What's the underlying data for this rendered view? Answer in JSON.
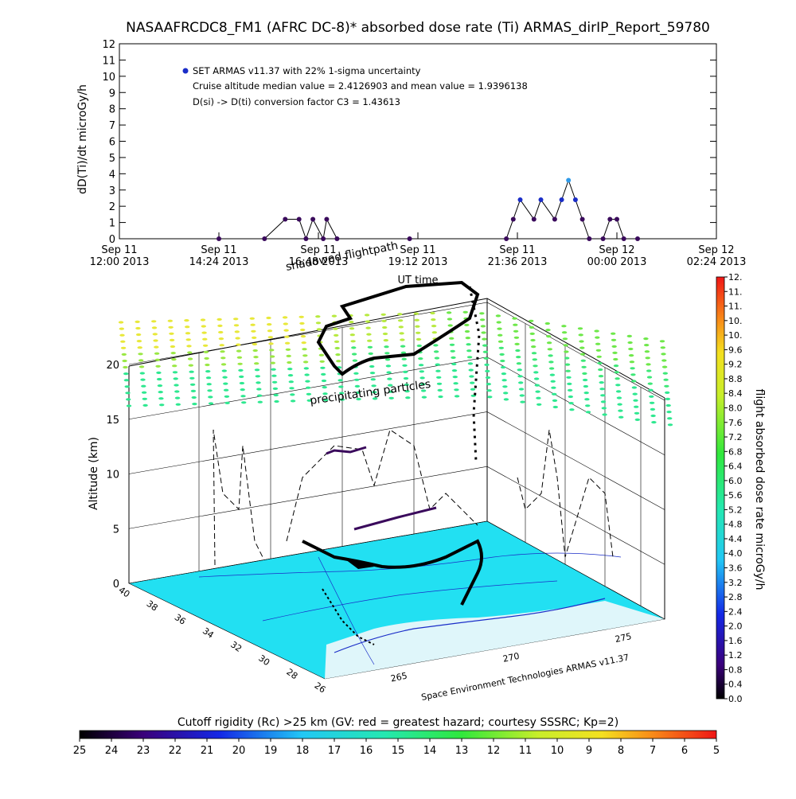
{
  "figure": {
    "title": "NASAAFRCDC8_FM1 (AFRC DC-8)* absorbed dose rate (Ti) ARMAS_dirIP_Report_59780",
    "credit": "Space Environment Technologies ARMAS v11.37"
  },
  "chart_data": [
    {
      "type": "scatter",
      "name": "time-series",
      "xlabel": "UT time",
      "ylabel": "dD(Ti)/dt microGy/h",
      "ylim": [
        0,
        12
      ],
      "yticks": [
        0,
        1,
        2,
        3,
        4,
        5,
        6,
        7,
        8,
        9,
        10,
        11,
        12
      ],
      "xticks": [
        {
          "line1": "Sep 11",
          "line2": "12:00 2013"
        },
        {
          "line1": "Sep 11",
          "line2": "14:24 2013"
        },
        {
          "line1": "Sep 11",
          "line2": "16:48 2013"
        },
        {
          "line1": "Sep 11",
          "line2": "19:12 2013"
        },
        {
          "line1": "Sep 11",
          "line2": "21:36 2013"
        },
        {
          "line1": "Sep 12",
          "line2": "00:00 2013"
        },
        {
          "line1": "Sep 12",
          "line2": "02:24 2013"
        }
      ],
      "legend": {
        "series": "SET ARMAS v11.37 with 22% 1-sigma uncertainty",
        "stat1": "Cruise altitude median value = 2.4126903 and mean value = 1.9396138",
        "stat2": "D(si) -> D(ti) conversion factor C3 = 1.43613",
        "placement": "top-left"
      },
      "points": [
        {
          "t": "Sep 11 14:24",
          "y": 0
        },
        {
          "t": "Sep 11 15:30",
          "y": 0
        },
        {
          "t": "Sep 11 16:00",
          "y": 1.2
        },
        {
          "t": "Sep 11 16:20",
          "y": 1.2
        },
        {
          "t": "Sep 11 16:30",
          "y": 0
        },
        {
          "t": "Sep 11 16:40",
          "y": 1.2
        },
        {
          "t": "Sep 11 16:55",
          "y": 0
        },
        {
          "t": "Sep 11 17:00",
          "y": 1.2
        },
        {
          "t": "Sep 11 17:15",
          "y": 0
        },
        {
          "t": "Sep 11 19:00",
          "y": 0
        },
        {
          "t": "Sep 11 21:20",
          "y": 0
        },
        {
          "t": "Sep 11 21:30",
          "y": 1.2
        },
        {
          "t": "Sep 11 21:40",
          "y": 2.4
        },
        {
          "t": "Sep 11 22:00",
          "y": 1.2
        },
        {
          "t": "Sep 11 22:10",
          "y": 2.4
        },
        {
          "t": "Sep 11 22:30",
          "y": 1.2
        },
        {
          "t": "Sep 11 22:40",
          "y": 2.4
        },
        {
          "t": "Sep 11 22:50",
          "y": 3.6
        },
        {
          "t": "Sep 11 23:00",
          "y": 2.4
        },
        {
          "t": "Sep 11 23:10",
          "y": 1.2
        },
        {
          "t": "Sep 11 23:20",
          "y": 0
        },
        {
          "t": "Sep 11 23:40",
          "y": 0
        },
        {
          "t": "Sep 11 23:50",
          "y": 1.2
        },
        {
          "t": "Sep 12 00:00",
          "y": 1.2
        },
        {
          "t": "Sep 12 00:10",
          "y": 0
        },
        {
          "t": "Sep 12 00:30",
          "y": 0
        }
      ]
    },
    {
      "type": "scatter",
      "name": "3d-flight-track",
      "zlabel": "Altitude (km)",
      "zlim": [
        0,
        20
      ],
      "zticks": [
        0,
        5,
        10,
        15,
        20
      ],
      "lat_ticks": [
        40,
        38,
        36,
        34,
        32,
        30,
        28,
        26
      ],
      "lon_ticks": [
        265,
        270,
        275
      ],
      "annotations": [
        "shadowed flightpath",
        "precipitating particles"
      ],
      "track_lonlat": [
        [
          265.5,
          28.5
        ],
        [
          266.5,
          30
        ],
        [
          267.5,
          31.5
        ],
        [
          268.5,
          33
        ],
        [
          269.5,
          34
        ],
        [
          270,
          35
        ],
        [
          271,
          36.5
        ],
        [
          272,
          37.5
        ],
        [
          273.5,
          38.5
        ],
        [
          272,
          37
        ],
        [
          270.5,
          36
        ],
        [
          269.5,
          35
        ],
        [
          268.5,
          34
        ],
        [
          267.5,
          33
        ],
        [
          266.5,
          32
        ]
      ]
    }
  ],
  "colorbar_dose": {
    "label": "flight absorbed dose rate microGy/h",
    "ticks": [
      "0.0",
      "0.4",
      "0.8",
      "1.2",
      "1.6",
      "2.0",
      "2.4",
      "2.8",
      "3.2",
      "3.6",
      "4.0",
      "4.4",
      "4.8",
      "5.2",
      "5.6",
      "6.0",
      "6.4",
      "6.8",
      "7.2",
      "7.6",
      "8.0",
      "8.4",
      "8.8",
      "9.2",
      "9.6",
      "10.",
      "10.",
      "11.",
      "11.",
      "12."
    ]
  },
  "colorbar_rc": {
    "label": "Cutoff rigidity (Rc) >25 km (GV: red = greatest hazard; courtesy SSSRC; Kp=2)",
    "ticks": [
      "25",
      "24",
      "23",
      "22",
      "21",
      "20",
      "19",
      "18",
      "17",
      "16",
      "15",
      "14",
      "13",
      "12",
      "11",
      "10",
      "9",
      "8",
      "7",
      "6",
      "5"
    ]
  },
  "colors": {
    "series_dark": "#3a0a5c",
    "series_blue": "#1a2dc8",
    "series_cyan": "#2f9ae8",
    "ground": "#22e0f2"
  }
}
